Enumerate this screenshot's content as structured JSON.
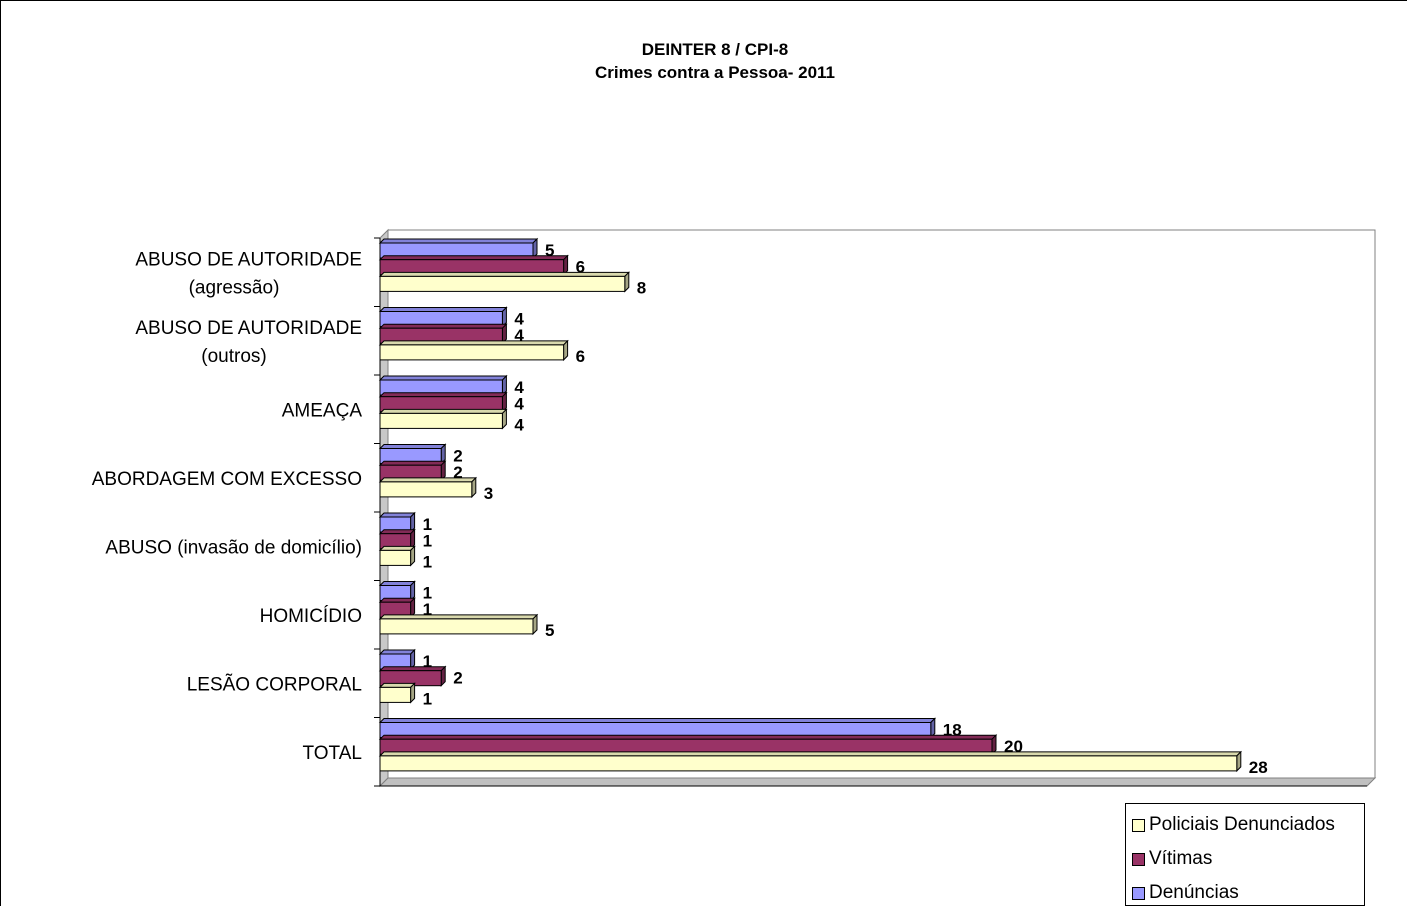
{
  "chart_data": {
    "type": "bar",
    "orientation": "horizontal",
    "title": "DEINTER 8 / CPI-8",
    "subtitle": "Crimes contra a Pessoa- 2011",
    "categories": [
      [
        "ABUSO DE AUTORIDADE",
        "(agressão)"
      ],
      [
        "ABUSO DE AUTORIDADE",
        "(outros)"
      ],
      [
        "AMEAÇA"
      ],
      [
        "ABORDAGEM COM EXCESSO"
      ],
      [
        "ABUSO (invasão de domicílio)"
      ],
      [
        "HOMICÍDIO"
      ],
      [
        "LESÃO CORPORAL"
      ],
      [
        "TOTAL"
      ]
    ],
    "series": [
      {
        "name": "Denúncias",
        "color": "#9999FF",
        "values": [
          5,
          4,
          4,
          2,
          1,
          1,
          1,
          18
        ]
      },
      {
        "name": "Vítimas",
        "color": "#993366",
        "values": [
          6,
          4,
          4,
          2,
          1,
          1,
          2,
          20
        ]
      },
      {
        "name": "Policiais Denunciados",
        "color": "#FFFFCC",
        "values": [
          8,
          6,
          4,
          3,
          1,
          5,
          1,
          28
        ]
      }
    ],
    "xlim": [
      0,
      30
    ],
    "grid": false,
    "legend_position": "bottom-right",
    "legend_order": [
      "Policiais Denunciados",
      "Vítimas",
      "Denúncias"
    ]
  }
}
